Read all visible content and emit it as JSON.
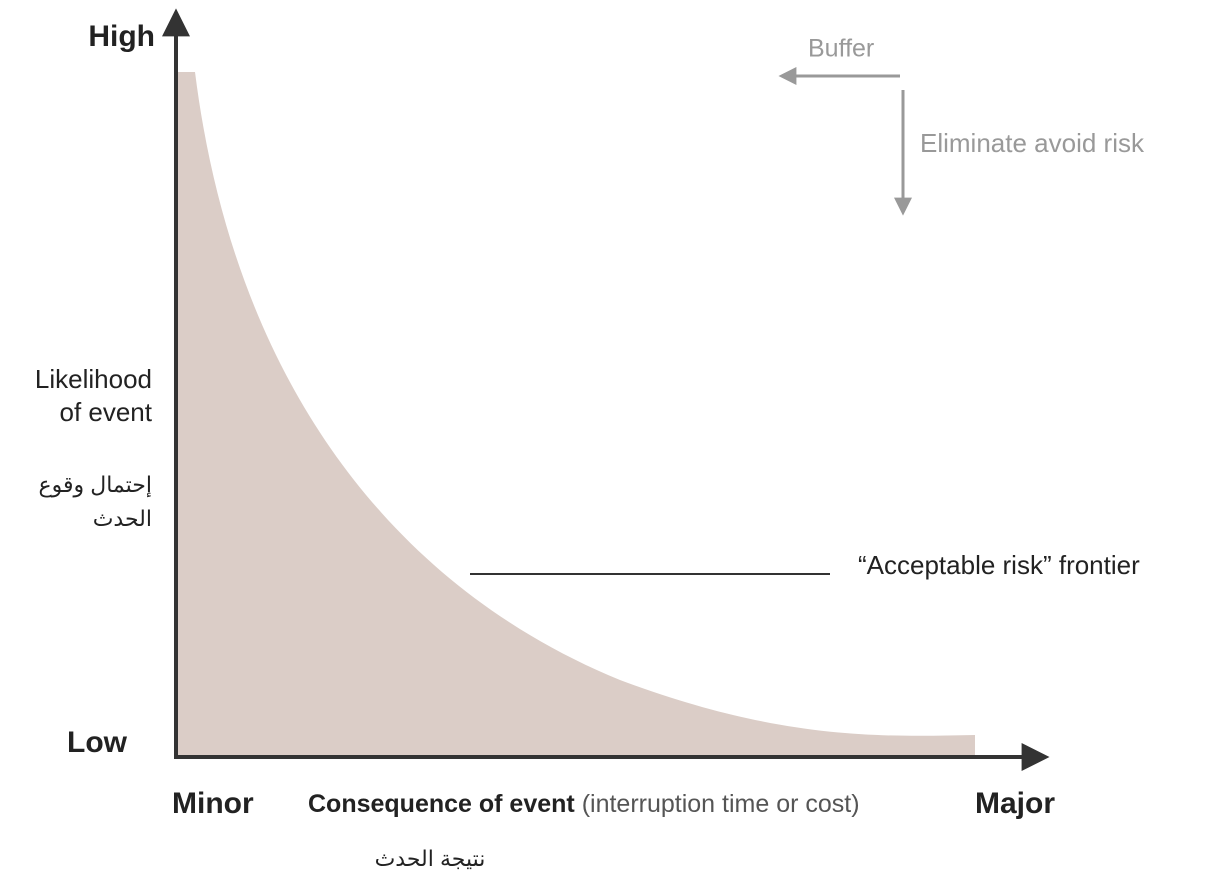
{
  "y_axis": {
    "high": "High",
    "low": "Low",
    "label_lines": [
      "Likelihood",
      "of event"
    ],
    "label_arabic_lines": [
      "إحتمال وقوع",
      "الحدث"
    ]
  },
  "x_axis": {
    "minor": "Minor",
    "label": "Consequence of event",
    "label_note": "(interruption time or cost)",
    "major": "Major",
    "label_arabic": "نتيجة الحدث"
  },
  "annotations": {
    "buffer": "Buffer",
    "eliminate": "Eliminate avoid risk",
    "frontier": "“Acceptable risk” frontier"
  }
}
